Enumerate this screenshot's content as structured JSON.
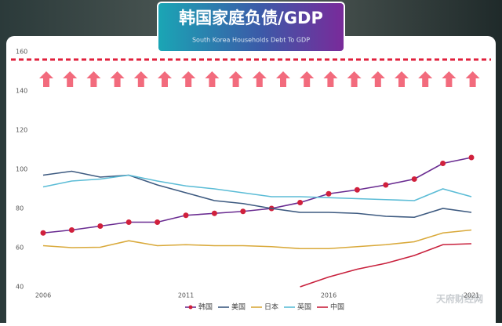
{
  "chart_data": {
    "type": "line",
    "title": "韩国家庭负债/GDP",
    "subtitle": "South Korea Households Debt To GDP",
    "x": [
      2006,
      2007,
      2008,
      2009,
      2010,
      2011,
      2012,
      2013,
      2014,
      2015,
      2016,
      2017,
      2018,
      2019,
      2020,
      2021
    ],
    "xlim": [
      2006,
      2021
    ],
    "xticks": [
      2006,
      2011,
      2016,
      2021
    ],
    "ylim": [
      40,
      160
    ],
    "yticks": [
      40,
      60,
      80,
      100,
      120,
      140,
      160
    ],
    "grid": false,
    "reference_line": 156,
    "reference_color": "#e0203c",
    "legend": "bottom",
    "series": [
      {
        "name": "韩国",
        "color": "#6a2c91",
        "marker_color": "#d0203c",
        "markers": true,
        "values": [
          67.5,
          69,
          71,
          73,
          73,
          76.5,
          77.5,
          78.5,
          80,
          83,
          87.5,
          89.5,
          92,
          95,
          103,
          106
        ]
      },
      {
        "name": "美国",
        "color": "#3d5a80",
        "values": [
          97,
          99,
          96,
          97,
          92,
          88,
          84,
          82.5,
          80,
          78,
          78,
          77.5,
          76,
          75.5,
          80,
          78
        ]
      },
      {
        "name": "日本",
        "color": "#d9a93a",
        "values": [
          61,
          60,
          60.2,
          63.5,
          61,
          61.5,
          61,
          61,
          60.5,
          59.5,
          59.5,
          60.5,
          61.5,
          63,
          67.5,
          69
        ]
      },
      {
        "name": "英国",
        "color": "#5bbcd6",
        "values": [
          91,
          94,
          95,
          97,
          94,
          91.5,
          90,
          88,
          86,
          86,
          85.5,
          85,
          84.5,
          84,
          90,
          86
        ]
      },
      {
        "name": "中国",
        "color": "#c8203c",
        "values": [
          null,
          null,
          null,
          null,
          null,
          null,
          null,
          null,
          null,
          40,
          45,
          49,
          52,
          56,
          61.5,
          62
        ]
      }
    ],
    "watermark": "天府财经网"
  }
}
